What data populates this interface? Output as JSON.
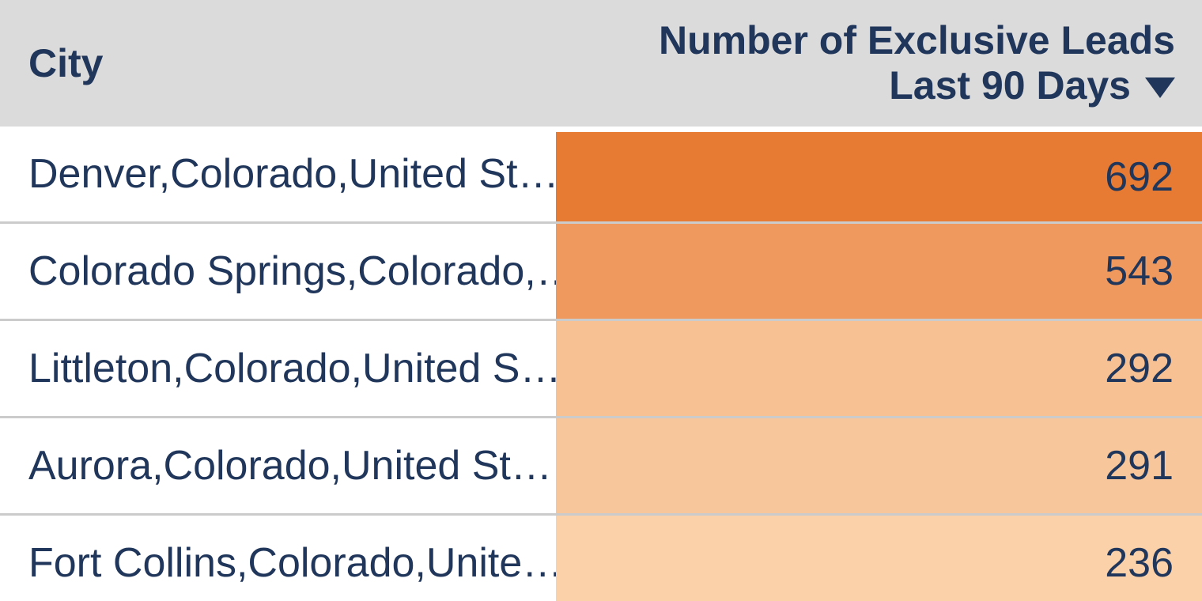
{
  "header": {
    "city_label": "City",
    "value_label_line1": "Number of Exclusive Leads",
    "value_label_line2": "Last 90 Days",
    "sort_icon": "triangle-down",
    "sort_direction": "descending",
    "background": "#dbdbdb",
    "text_color": "#20365a"
  },
  "rows": [
    {
      "city": "Denver,Colorado,United St…",
      "value": 692,
      "bg": "#e87b33"
    },
    {
      "city": "Colorado Springs,Colorado,…",
      "value": 543,
      "bg": "#f0995f"
    },
    {
      "city": "Littleton,Colorado,United S…",
      "value": 292,
      "bg": "#f8c193"
    },
    {
      "city": "Aurora,Colorado,United St…",
      "value": 291,
      "bg": "#f8c69b"
    },
    {
      "city": "Fort Collins,Colorado,Unite…",
      "value": 236,
      "bg": "#fbd1aa"
    }
  ],
  "colors": {
    "divider": "#cbcbcb",
    "row_background": "#ffffff",
    "text": "#20365a"
  },
  "chart_data": {
    "type": "table",
    "columns": [
      "City",
      "Number of Exclusive Leads Last 90 Days"
    ],
    "rows": [
      [
        "Denver,Colorado,United St…",
        692
      ],
      [
        "Colorado Springs,Colorado,…",
        543
      ],
      [
        "Littleton,Colorado,United S…",
        292
      ],
      [
        "Aurora,Colorado,United St…",
        291
      ],
      [
        "Fort Collins,Colorado,Unite…",
        236
      ]
    ],
    "sort": {
      "column": "Number of Exclusive Leads Last 90 Days",
      "direction": "descending"
    },
    "conditional_formatting": {
      "column": "Number of Exclusive Leads Last 90 Days",
      "style": "background-color-scale-orange",
      "cell_colors": [
        "#e87b33",
        "#f0995f",
        "#f8c193",
        "#f8c69b",
        "#fbd1aa"
      ]
    },
    "layout": {
      "header_background": "#dbdbdb",
      "grid": "horizontal-only"
    }
  }
}
